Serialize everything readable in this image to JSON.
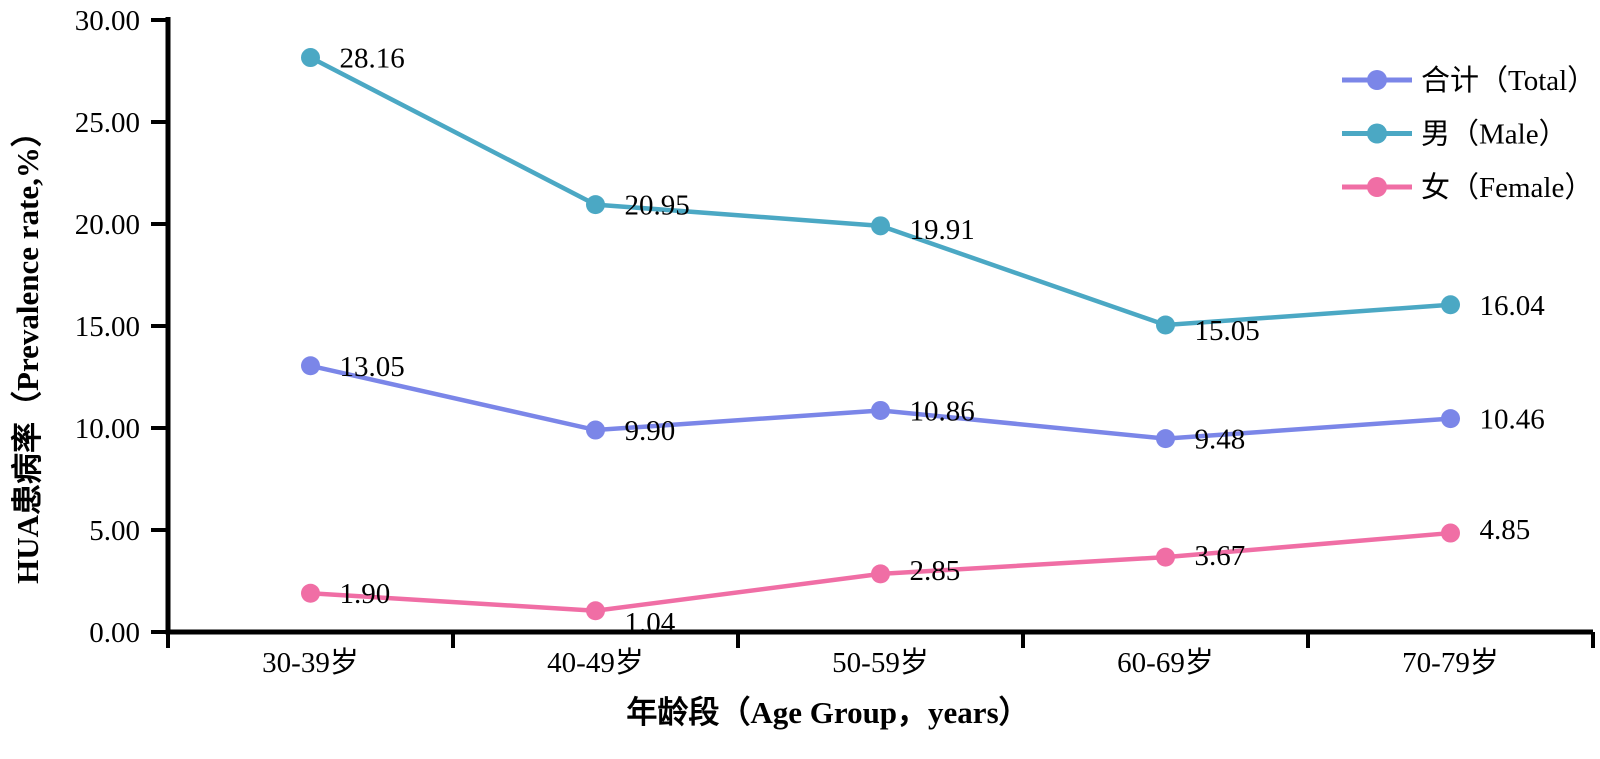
{
  "chart_data": {
    "type": "line",
    "title": "",
    "xlabel": "年龄段（Age Group，years）",
    "ylabel": "HUA患病率（Prevalence rate,%）",
    "categories": [
      "30-39岁",
      "40-49岁",
      "50-59岁",
      "60-69岁",
      "70-79岁"
    ],
    "series": [
      {
        "name": "合计（Total）",
        "color": "#7B86E8",
        "values": [
          13.05,
          9.9,
          10.86,
          9.48,
          10.46
        ],
        "value_labels": [
          "13.05",
          "9.90",
          "10.86",
          "9.48",
          "10.46"
        ],
        "label_dy": [
          0,
          0,
          0,
          0,
          0
        ]
      },
      {
        "name": "男（Male）",
        "color": "#4BA8C4",
        "values": [
          28.16,
          20.95,
          19.91,
          15.05,
          16.04
        ],
        "value_labels": [
          "28.16",
          "20.95",
          "19.91",
          "15.05",
          "16.04"
        ],
        "label_dy": [
          0,
          0,
          3,
          5,
          0
        ]
      },
      {
        "name": "女（Female）",
        "color": "#F06EA5",
        "values": [
          1.9,
          1.04,
          2.85,
          3.67,
          4.85
        ],
        "value_labels": [
          "1.90",
          "1.04",
          "2.85",
          "3.67",
          "4.85"
        ],
        "label_dy": [
          0,
          11,
          -4,
          -2,
          -4
        ]
      }
    ],
    "ylim": [
      0,
      30
    ],
    "ytick_step": 5,
    "ytick_labels": [
      "0.00",
      "5.00",
      "10.00",
      "15.00",
      "20.00",
      "25.00",
      "30.00"
    ],
    "legend_position": "top-right",
    "grid": false,
    "marker": "circle",
    "axis_color": "#000000",
    "text_color": "#000000"
  }
}
